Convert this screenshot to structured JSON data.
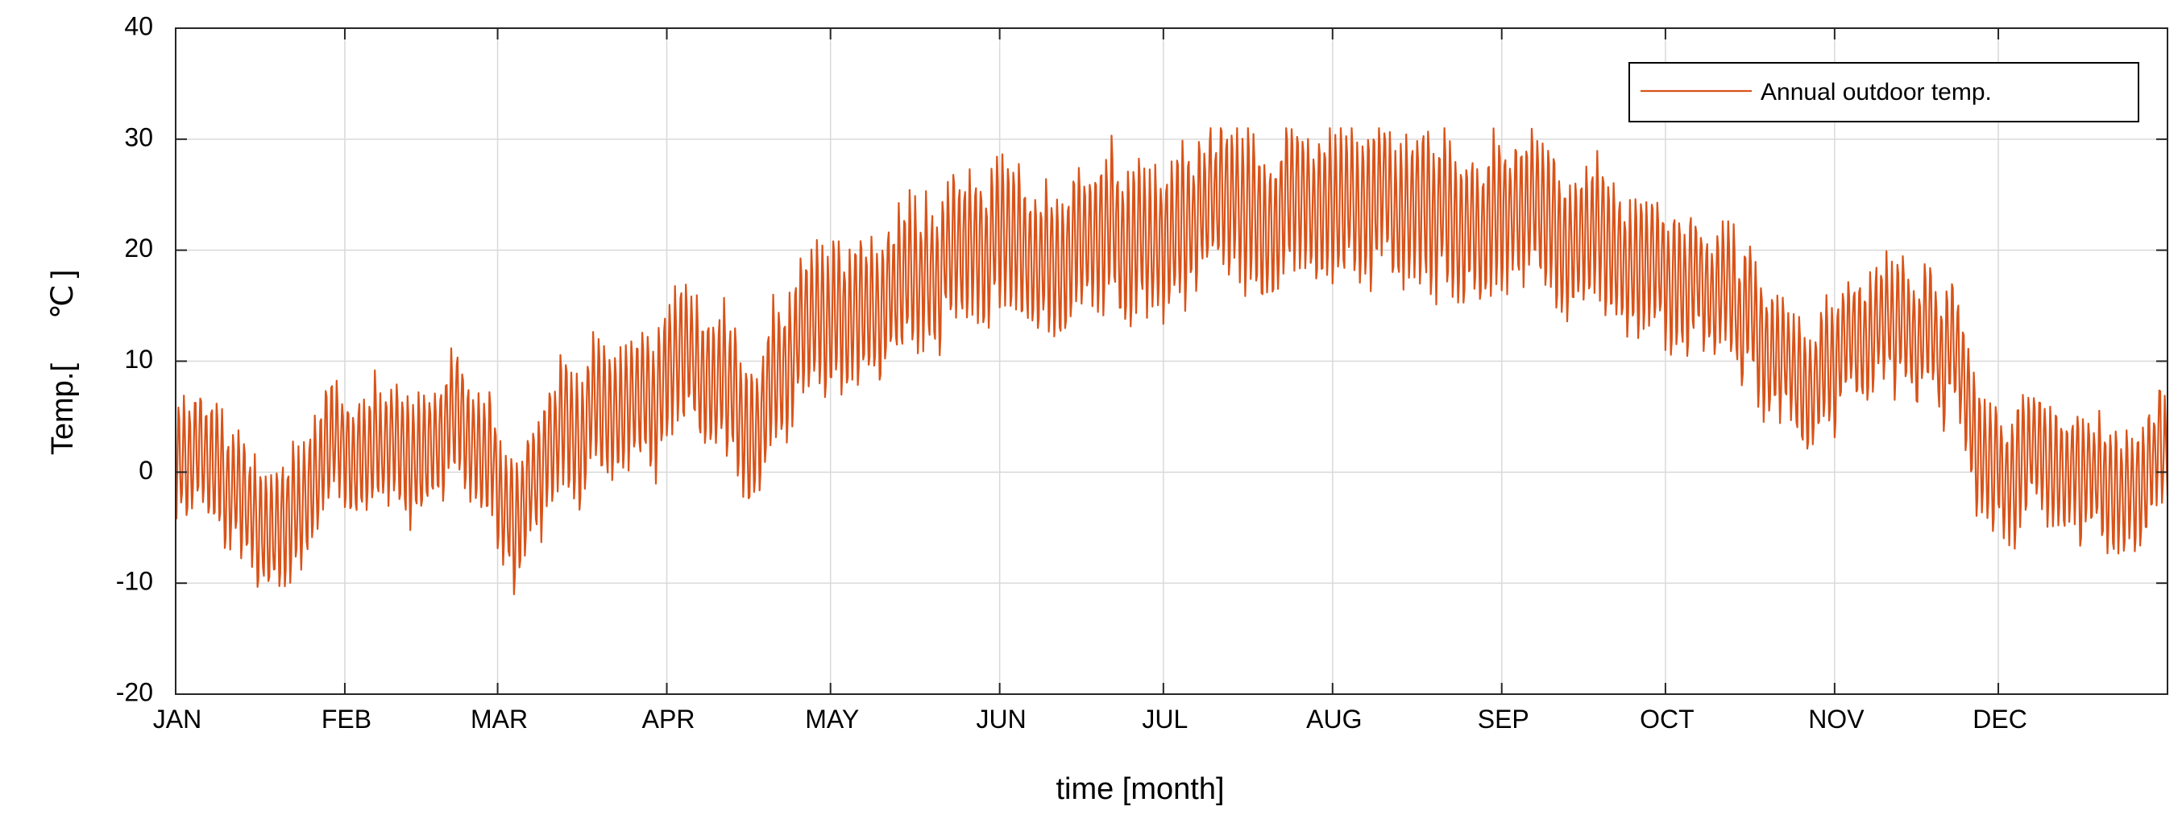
{
  "chart_data": {
    "type": "line",
    "title": "",
    "xlabel": "time [month]",
    "ylabel_text": "Temp.[",
    "ylabel_unit": "℃",
    "ylabel_close": "]",
    "xlim": [
      0,
      365
    ],
    "ylim": [
      -20,
      40
    ],
    "yticks": [
      -20,
      -10,
      0,
      10,
      20,
      30,
      40
    ],
    "yticklabels": [
      "-20",
      "-10",
      "0",
      "10",
      "20",
      "30",
      "40"
    ],
    "month_positions": [
      0,
      31,
      59,
      90,
      120,
      151,
      181,
      212,
      243,
      273,
      304,
      334
    ],
    "month_labels": [
      "JAN",
      "FEB",
      "MAR",
      "APR",
      "MAY",
      "JUN",
      "JUL",
      "AUG",
      "SEP",
      "OCT",
      "NOV",
      "DEC"
    ],
    "grid": true,
    "legend_position": "top-right",
    "series": [
      {
        "name": "Annual outdoor temp.",
        "color": "#d95319",
        "daily_mean": {
          "x": [
            0,
            7,
            14,
            18,
            24,
            31,
            38,
            45,
            52,
            57,
            62,
            70,
            78,
            86,
            93,
            100,
            105,
            110,
            116,
            122,
            130,
            138,
            145,
            150,
            158,
            165,
            172,
            181,
            190,
            197,
            205,
            212,
            220,
            228,
            236,
            243,
            250,
            257,
            265,
            273,
            280,
            288,
            294,
            300,
            307,
            314,
            321,
            326,
            330,
            334,
            341,
            348,
            356,
            364
          ],
          "y": [
            0,
            1,
            -3,
            -6,
            -2,
            3,
            2,
            1,
            4,
            -1,
            -3,
            4,
            5,
            7,
            10,
            8,
            4,
            8,
            12,
            13,
            16,
            18,
            20,
            22,
            19,
            21,
            22,
            21,
            24,
            23,
            22,
            23,
            24,
            23,
            22,
            24,
            23,
            22,
            21,
            18,
            17,
            14,
            10,
            6,
            13,
            14,
            14,
            11,
            1,
            0,
            2,
            -1,
            -2,
            2
          ]
        },
        "daily_amplitude": {
          "x": [
            0,
            60,
            120,
            180,
            240,
            300,
            364
          ],
          "y": [
            5,
            5,
            6,
            6,
            6,
            5,
            5
          ]
        },
        "min": -11,
        "max": 31
      }
    ]
  }
}
